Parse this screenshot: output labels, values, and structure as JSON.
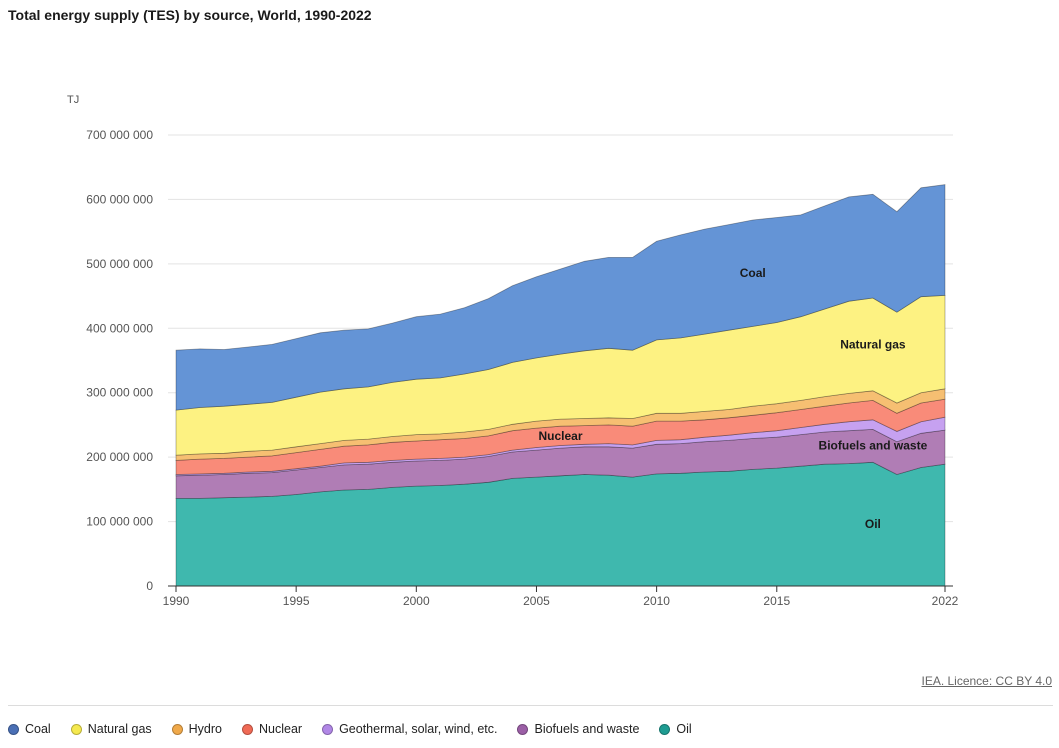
{
  "title": "Total energy supply (TES) by source, World, 1990-2022",
  "unit": "TJ",
  "license": "IEA. Licence: CC BY 4.0",
  "chart_data": {
    "type": "area",
    "stacked": true,
    "title": "Total energy supply (TES) by source, World, 1990-2022",
    "ylabel": "TJ",
    "xlabel": "",
    "ylim": [
      0,
      700000000
    ],
    "yticks": [
      0,
      100000000,
      200000000,
      300000000,
      400000000,
      500000000,
      600000000,
      700000000
    ],
    "ytick_labels": [
      "0",
      "100 000 000",
      "200 000 000",
      "300 000 000",
      "400 000 000",
      "500 000 000",
      "600 000 000",
      "700 000 000"
    ],
    "xlim": [
      1990,
      2022
    ],
    "xticks": [
      1990,
      1995,
      2000,
      2005,
      2010,
      2015,
      2022
    ],
    "grid": true,
    "legend_position": "bottom",
    "x": [
      1990,
      1991,
      1992,
      1993,
      1994,
      1995,
      1996,
      1997,
      1998,
      1999,
      2000,
      2001,
      2002,
      2003,
      2004,
      2005,
      2006,
      2007,
      2008,
      2009,
      2010,
      2011,
      2012,
      2013,
      2014,
      2015,
      2016,
      2017,
      2018,
      2019,
      2020,
      2021,
      2022
    ],
    "series": [
      {
        "name": "Oil",
        "color": "#3fb8ae",
        "label": "Oil",
        "values": [
          136000000,
          136000000,
          137000000,
          138000000,
          139000000,
          142000000,
          146000000,
          149000000,
          150000000,
          153000000,
          155000000,
          156000000,
          158000000,
          161000000,
          167000000,
          169000000,
          171000000,
          173000000,
          172000000,
          169000000,
          174000000,
          175000000,
          177000000,
          178000000,
          181000000,
          183000000,
          186000000,
          189000000,
          190000000,
          192000000,
          173000000,
          184000000,
          189000000
        ]
      },
      {
        "name": "Biofuels and waste",
        "color": "#b07db5",
        "label": "Biofuels and waste",
        "values": [
          35000000,
          36000000,
          36000000,
          37000000,
          37000000,
          38000000,
          38000000,
          39000000,
          39000000,
          39000000,
          39000000,
          39000000,
          39000000,
          40000000,
          41000000,
          42000000,
          43000000,
          43000000,
          44000000,
          45000000,
          46000000,
          46000000,
          47000000,
          48000000,
          48000000,
          48000000,
          49000000,
          50000000,
          51000000,
          51000000,
          51000000,
          53000000,
          53000000
        ]
      },
      {
        "name": "Geothermal, solar, wind, etc.",
        "color": "#c6a1f0",
        "values": [
          2000000,
          2000000,
          2000000,
          2000000,
          2000000,
          2000000,
          2000000,
          3000000,
          3000000,
          3000000,
          3000000,
          3000000,
          3000000,
          3000000,
          3000000,
          4000000,
          4000000,
          4000000,
          5000000,
          5000000,
          6000000,
          6000000,
          7000000,
          8000000,
          9000000,
          10000000,
          11000000,
          12000000,
          14000000,
          15000000,
          16000000,
          18000000,
          20000000
        ]
      },
      {
        "name": "Nuclear",
        "color": "#f98b79",
        "label": "Nuclear",
        "values": [
          22000000,
          23000000,
          23000000,
          23000000,
          24000000,
          25000000,
          26000000,
          26000000,
          27000000,
          28000000,
          28000000,
          29000000,
          29000000,
          29000000,
          30000000,
          30000000,
          30000000,
          29000000,
          29000000,
          29000000,
          30000000,
          29000000,
          27000000,
          27000000,
          27000000,
          28000000,
          28000000,
          28000000,
          29000000,
          30000000,
          28000000,
          29000000,
          28000000
        ]
      },
      {
        "name": "Hydro",
        "color": "#f6bf72",
        "values": [
          8000000,
          8000000,
          8000000,
          9000000,
          9000000,
          9000000,
          9000000,
          9000000,
          9000000,
          9000000,
          10000000,
          9000000,
          10000000,
          10000000,
          10000000,
          11000000,
          11000000,
          11000000,
          11000000,
          12000000,
          12000000,
          12000000,
          13000000,
          13000000,
          14000000,
          14000000,
          14000000,
          15000000,
          15000000,
          15000000,
          16000000,
          16000000,
          16000000
        ]
      },
      {
        "name": "Natural gas",
        "color": "#fdf282",
        "label": "Natural gas",
        "values": [
          70000000,
          72000000,
          73000000,
          73000000,
          74000000,
          77000000,
          80000000,
          80000000,
          81000000,
          84000000,
          86000000,
          87000000,
          90000000,
          93000000,
          96000000,
          98000000,
          101000000,
          105000000,
          108000000,
          106000000,
          114000000,
          117000000,
          120000000,
          123000000,
          124000000,
          126000000,
          130000000,
          136000000,
          143000000,
          144000000,
          141000000,
          149000000,
          145000000
        ]
      },
      {
        "name": "Coal",
        "color": "#6494d6",
        "label": "Coal",
        "values": [
          93000000,
          91000000,
          88000000,
          89000000,
          90000000,
          91000000,
          92000000,
          91000000,
          90000000,
          92000000,
          97000000,
          99000000,
          103000000,
          110000000,
          119000000,
          126000000,
          132000000,
          139000000,
          141000000,
          144000000,
          153000000,
          160000000,
          163000000,
          164000000,
          165000000,
          163000000,
          158000000,
          160000000,
          162000000,
          161000000,
          156000000,
          169000000,
          172000000
        ]
      }
    ]
  },
  "legend": [
    {
      "label": "Coal",
      "color": "#4a6fb5"
    },
    {
      "label": "Natural gas",
      "color": "#f5e94f"
    },
    {
      "label": "Hydro",
      "color": "#f0a94a"
    },
    {
      "label": "Nuclear",
      "color": "#f06a55"
    },
    {
      "label": "Geothermal, solar, wind, etc.",
      "color": "#b187e6"
    },
    {
      "label": "Biofuels and waste",
      "color": "#9b5fa6"
    },
    {
      "label": "Oil",
      "color": "#1e9c92"
    }
  ]
}
